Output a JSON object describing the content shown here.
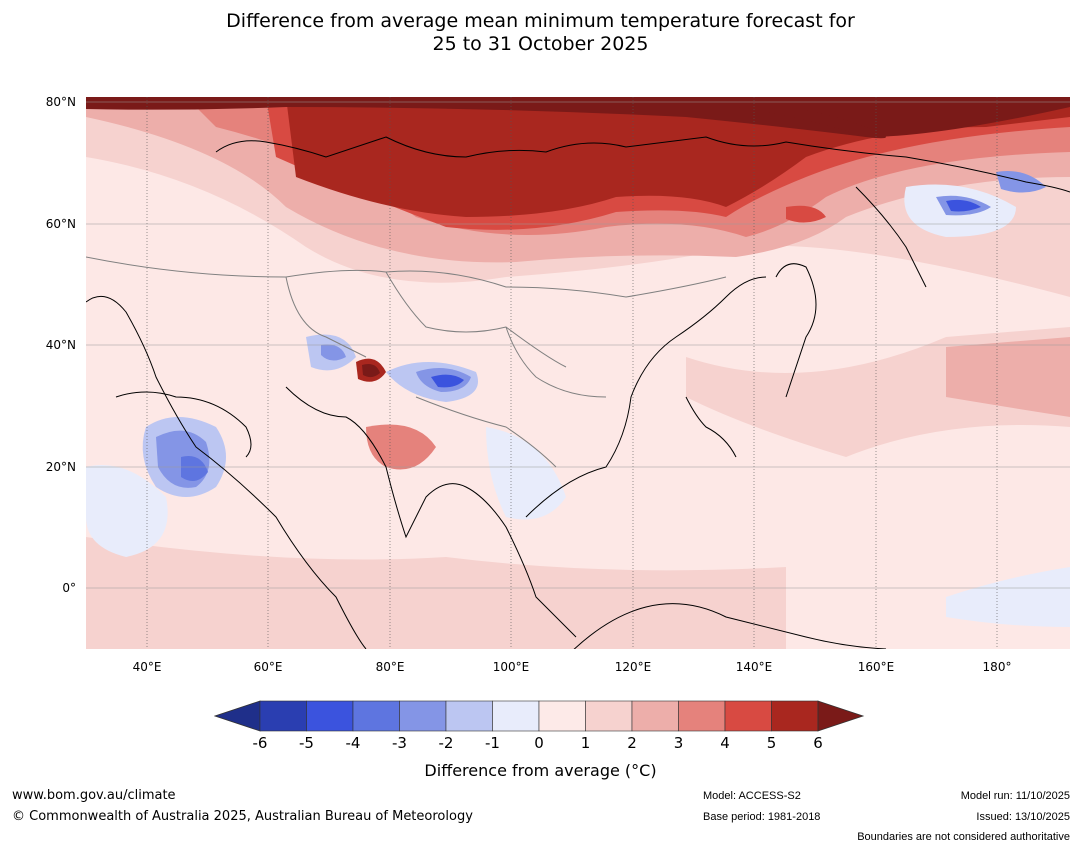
{
  "title": {
    "line1": "Difference from average mean minimum temperature forecast for",
    "line2": "25 to 31 October 2025"
  },
  "map": {
    "lat_labels": [
      "80°N",
      "60°N",
      "40°N",
      "20°N",
      "0°"
    ],
    "lon_labels": [
      "40°E",
      "60°E",
      "80°E",
      "100°E",
      "120°E",
      "140°E",
      "160°E",
      "180°"
    ],
    "lat_values": [
      80,
      60,
      40,
      20,
      0
    ],
    "lon_values": [
      40,
      60,
      80,
      100,
      120,
      140,
      160,
      180
    ],
    "extent": {
      "lon_min": 30,
      "lon_max": 192,
      "lat_min": -10,
      "lat_max": 80
    }
  },
  "colorbar": {
    "ticks": [
      "-6",
      "-5",
      "-4",
      "-3",
      "-2",
      "-1",
      "0",
      "1",
      "2",
      "3",
      "4",
      "5",
      "6"
    ],
    "colors": [
      "#1f2f8a",
      "#2a3eb1",
      "#3b53de",
      "#5e75e0",
      "#8495e6",
      "#bcc6f2",
      "#e8ecfb",
      "#fdeae8",
      "#f6d2cf",
      "#edaeaa",
      "#e5827c",
      "#d84a42",
      "#a9271f",
      "#7a1a18"
    ],
    "label": "Difference from average (°C)"
  },
  "footer": {
    "url": "www.bom.gov.au/climate",
    "copyright": "© Commonwealth of Australia 2025, Australian Bureau of Meteorology",
    "model": "Model: ACCESS-S2",
    "base_period": "Base period: 1981-2018",
    "model_run": "Model run: 11/10/2025",
    "issued": "Issued: 13/10/2025",
    "disclaimer": "Boundaries are not considered authoritative"
  }
}
